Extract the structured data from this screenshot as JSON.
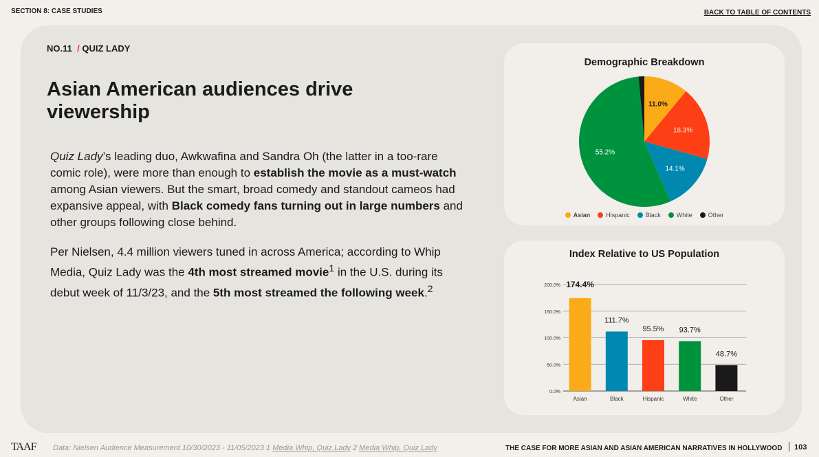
{
  "header": {
    "section": "SECTION 8: CASE STUDIES",
    "back_link": "BACK TO TABLE OF CONTENTS"
  },
  "breadcrumb": {
    "number": "NO.11",
    "separator": "/",
    "title": "QUIZ LADY"
  },
  "headline": "Asian American audiences drive viewership",
  "paragraph1": {
    "italic": "Quiz Lady",
    "t1": "’s leading duo, Awkwafina and Sandra Oh (the latter in a too-rare comic role), were more than enough to ",
    "b1": "establish the movie as a must-watch",
    "t2": " among Asian viewers. But the smart, broad comedy and standout cameos had expansive appeal, with ",
    "b2": "Black comedy fans turning out in large numbers",
    "t3": " and other groups following close behind."
  },
  "paragraph2": {
    "t1": "Per Nielsen, 4.4 million viewers tuned in across America; according to Whip Media, Quiz Lady was the ",
    "b1": "4th most streamed movie",
    "sup1": "1",
    "t2": " in the U.S. during its debut week of 11/3/23, and the ",
    "b2": "5th most streamed the following week",
    "t3": ".",
    "sup2": "2"
  },
  "chart_data": [
    {
      "type": "pie",
      "title": "Demographic Breakdown",
      "categories": [
        "Asian",
        "Hispanic",
        "Black",
        "White",
        "Other"
      ],
      "values": [
        11.0,
        18.3,
        14.1,
        55.2,
        1.4
      ],
      "labels": [
        "11.0%",
        "18.3%",
        "14.1%",
        "55.2%",
        ""
      ],
      "colors": [
        "#fbab18",
        "#fd3f16",
        "#0088b0",
        "#00933e",
        "#1a1a1a"
      ],
      "legend": "bottom"
    },
    {
      "type": "bar",
      "title": "Index Relative to US Population",
      "categories": [
        "Asian",
        "Black",
        "Hispanic",
        "White",
        "Other"
      ],
      "values": [
        174.4,
        111.7,
        95.5,
        93.7,
        48.7
      ],
      "labels": [
        "174.4%",
        "111.7%",
        "95.5%",
        "93.7%",
        "48.7%"
      ],
      "colors": [
        "#fbab18",
        "#0088b0",
        "#fd3f16",
        "#00933e",
        "#1a1a1a"
      ],
      "ylim": [
        0,
        200
      ],
      "yticks": [
        "0.0%",
        "50.0%",
        "100.0%",
        "150.0%",
        "200.0%"
      ],
      "grid": true
    }
  ],
  "footer": {
    "logo": "TAAF",
    "source": "Data: Nielsen Audience Measurement 10/30/2023 - 11/05/2023 1 ",
    "link1": "Media Whip, Quiz Lady",
    "mid": " 2 ",
    "link2": "Media Whip, Quiz Lady",
    "title": "THE CASE FOR MORE ASIAN AND ASIAN AMERICAN NARRATIVES IN HOLLYWOOD",
    "page": "103"
  }
}
